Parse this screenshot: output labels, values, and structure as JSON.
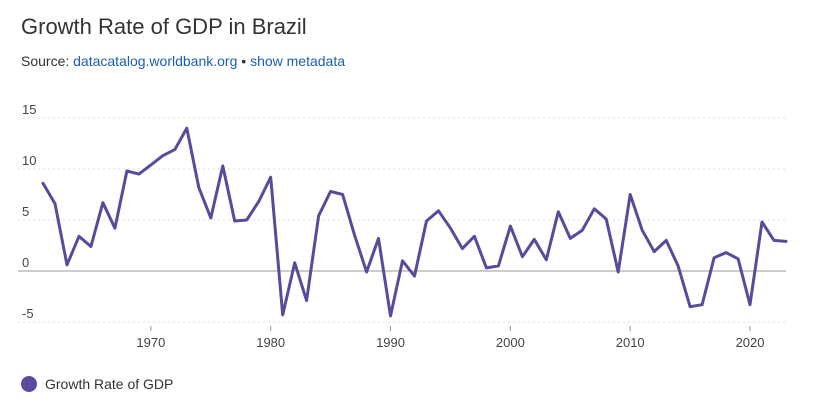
{
  "header": {
    "title": "Growth Rate of GDP in Brazil",
    "source_prefix": "Source:",
    "source_link": "datacatalog.worldbank.org",
    "separator": "•",
    "metadata_link": "show metadata"
  },
  "legend": {
    "label": "Growth Rate of GDP"
  },
  "colors": {
    "line": "#5b4a9a",
    "grid": "#dddddd",
    "zero": "#999999",
    "text": "#444444"
  },
  "chart_data": {
    "type": "line",
    "title": "Growth Rate of GDP in Brazil",
    "xlabel": "",
    "ylabel": "",
    "xlim": [
      1961,
      2023
    ],
    "ylim": [
      -6,
      16
    ],
    "yticks": [
      15,
      10,
      5,
      0,
      -5
    ],
    "xticks": [
      1970,
      1980,
      1990,
      2000,
      2010,
      2020
    ],
    "grid": true,
    "legend_position": "bottom-left",
    "series": [
      {
        "name": "Growth Rate of GDP",
        "x": [
          1961,
          1962,
          1963,
          1964,
          1965,
          1966,
          1967,
          1968,
          1969,
          1970,
          1971,
          1972,
          1973,
          1974,
          1975,
          1976,
          1977,
          1978,
          1979,
          1980,
          1981,
          1982,
          1983,
          1984,
          1985,
          1986,
          1987,
          1988,
          1989,
          1990,
          1991,
          1992,
          1993,
          1994,
          1995,
          1996,
          1997,
          1998,
          1999,
          2000,
          2001,
          2002,
          2003,
          2004,
          2005,
          2006,
          2007,
          2008,
          2009,
          2010,
          2011,
          2012,
          2013,
          2014,
          2015,
          2016,
          2017,
          2018,
          2019,
          2020,
          2021,
          2022,
          2023
        ],
        "values": [
          8.6,
          6.6,
          0.6,
          3.4,
          2.4,
          6.7,
          4.2,
          9.8,
          9.5,
          10.4,
          11.3,
          11.9,
          14.0,
          8.2,
          5.2,
          10.3,
          4.9,
          5.0,
          6.8,
          9.2,
          -4.3,
          0.8,
          -2.9,
          5.4,
          7.8,
          7.5,
          3.5,
          -0.1,
          3.2,
          -4.4,
          1.0,
          -0.5,
          4.9,
          5.9,
          4.2,
          2.2,
          3.4,
          0.3,
          0.5,
          4.4,
          1.4,
          3.1,
          1.1,
          5.8,
          3.2,
          4.0,
          6.1,
          5.1,
          -0.1,
          7.5,
          4.0,
          1.9,
          3.0,
          0.5,
          -3.5,
          -3.3,
          1.3,
          1.8,
          1.2,
          -3.3,
          4.8,
          3.0,
          2.9
        ]
      }
    ]
  }
}
